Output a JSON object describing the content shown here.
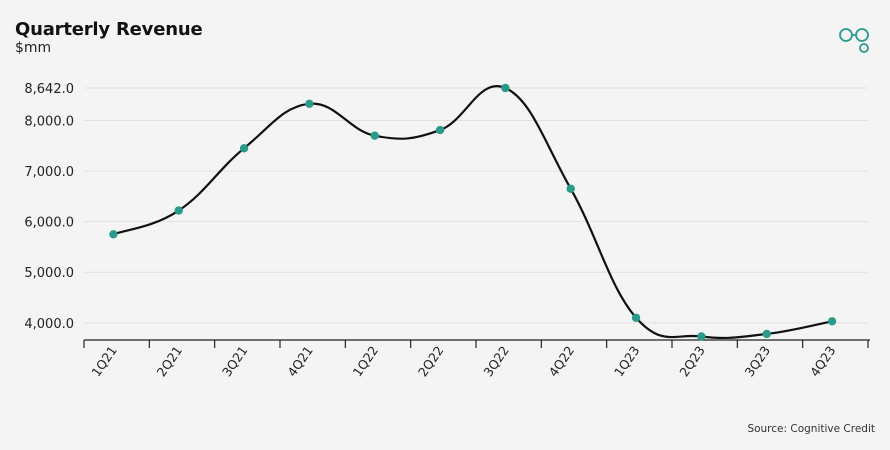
{
  "header": {
    "title": "Quarterly Revenue",
    "subtitle": "$mm"
  },
  "footer": {
    "source": "Source: Cognitive Credit"
  },
  "logo": {
    "icon": "cognitive-credit-logo-icon",
    "color": "#2a9a8a"
  },
  "colors": {
    "line": "#111111",
    "marker": "#2a9a8a",
    "grid": "#e2e2e2",
    "axis": "#222222"
  },
  "chart_data": {
    "type": "line",
    "title": "Quarterly Revenue",
    "ylabel": "$mm",
    "xlabel": "",
    "categories": [
      "1Q21",
      "2Q21",
      "3Q21",
      "4Q21",
      "1Q22",
      "2Q22",
      "3Q22",
      "4Q22",
      "1Q23",
      "2Q23",
      "3Q23",
      "4Q23"
    ],
    "values": [
      5750,
      6220,
      7450,
      8330,
      7700,
      7810,
      8642,
      6650,
      4100,
      3730,
      3780,
      4030
    ],
    "yticks": [
      4000,
      5000,
      6000,
      7000,
      8000,
      8642
    ],
    "ytick_labels": [
      "4,000.0",
      "5,000.0",
      "6,000.0",
      "7,000.0",
      "8,000.0",
      "8,642.0"
    ],
    "ylim": [
      3700,
      8642
    ],
    "grid": true,
    "smooth": true
  }
}
